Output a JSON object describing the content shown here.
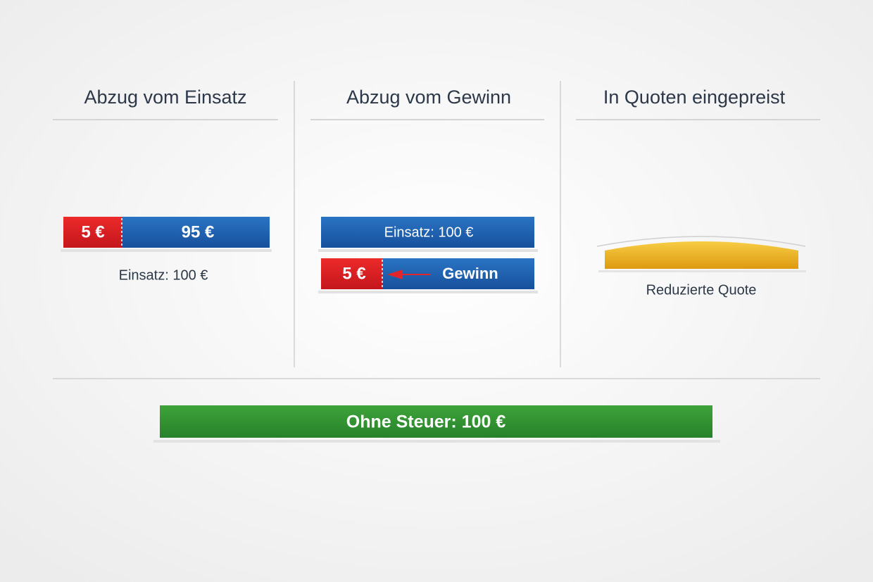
{
  "columns": [
    {
      "title": "Abzug vom Einsatz",
      "bar": {
        "tax": "5 €",
        "rest": "95 €"
      },
      "caption": "Einsatz: 100 €"
    },
    {
      "title": "Abzug vom Gewinn",
      "stake_bar": "Einsatz: 100 €",
      "win_bar": {
        "tax": "5 €",
        "label": "Gewinn"
      }
    },
    {
      "title": "In Quoten eingepreist",
      "caption": "Reduzierte Quote"
    }
  ],
  "footer": {
    "label": "Ohne Steuer: 100 €"
  }
}
